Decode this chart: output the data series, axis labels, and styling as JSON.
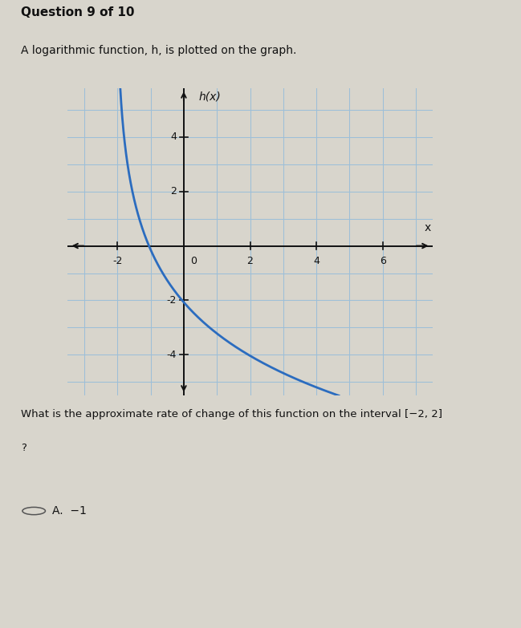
{
  "title_question": "Question 9 of 10",
  "description": "A logarithmic function, h, is plotted on the graph.",
  "question_text": "What is the approximate rate of change of this function on the interval [−2, 2]",
  "question_text2": "?",
  "answer_text": "A.  −1",
  "graph_ylabel": "h(x)",
  "graph_xlabel": "x",
  "xlim": [
    -3.5,
    7.5
  ],
  "ylim": [
    -5.5,
    5.8
  ],
  "xticks": [
    -2,
    2,
    4,
    6
  ],
  "yticks": [
    -4,
    -2,
    2,
    4
  ],
  "curve_color": "#2b6cbf",
  "curve_linewidth": 2.0,
  "grid_color": "#9dbfd8",
  "grid_bg": "#cddde8",
  "page_bg": "#d8d5cc",
  "axes_color": "#111111",
  "text_color": "#111111",
  "log_base": 2.0,
  "log_shift": 2.05,
  "log_scale": -2.0,
  "x_start": -1.97,
  "x_end": 7.2
}
